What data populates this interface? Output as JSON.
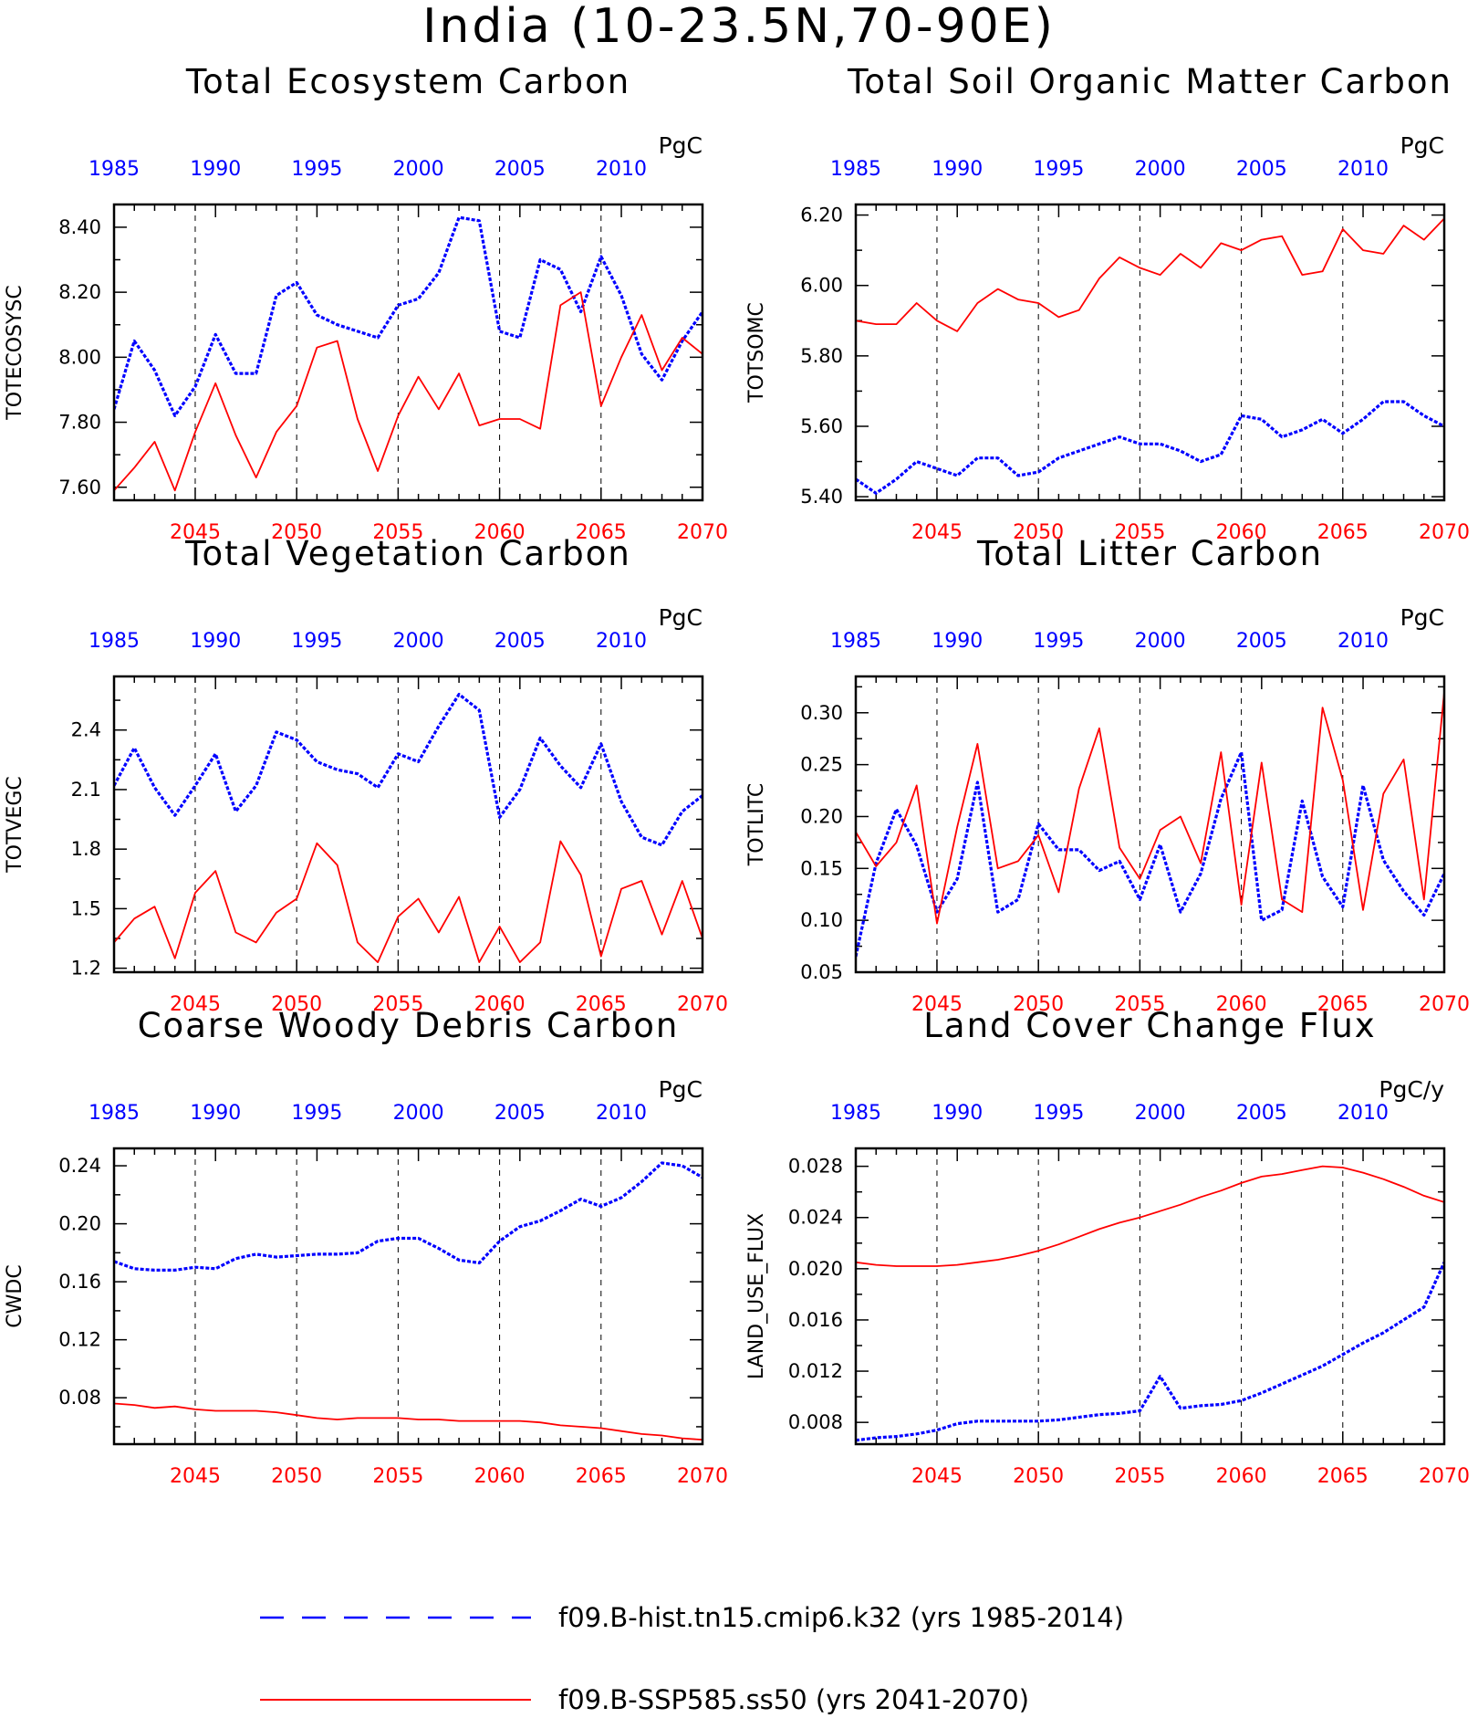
{
  "title": "India (10-23.5N,70-90E)",
  "legend": [
    {
      "label": "f09.B-hist.tn15.cmip6.k32 (yrs 1985-2014)",
      "color": "#0000ff",
      "style": "dashed"
    },
    {
      "label": "f09.B-SSP585.ss50 (yrs 2041-2070)",
      "color": "#ff0000",
      "style": "solid"
    }
  ],
  "axes_common": {
    "top_ticks": [
      "1985",
      "1990",
      "1995",
      "2000",
      "2005",
      "2010"
    ],
    "bottom_ticks": [
      "2045",
      "2050",
      "2055",
      "2060",
      "2065",
      "2070"
    ],
    "top_range": [
      1985,
      2014
    ],
    "bottom_range": [
      2041,
      2070
    ]
  },
  "chart_data": [
    {
      "type": "line",
      "title": "Total Ecosystem Carbon",
      "ylabel": "TOTECOSYSC",
      "unit": "PgC",
      "ylim": [
        7.56,
        8.47
      ],
      "yticks": [
        "7.60",
        "7.80",
        "8.00",
        "8.20",
        "8.40"
      ],
      "series": [
        {
          "name": "f09.B-hist.tn15.cmip6.k32 (yrs 1985-2014)",
          "x": [
            1985,
            1986,
            1987,
            1988,
            1989,
            1990,
            1991,
            1992,
            1993,
            1994,
            1995,
            1996,
            1997,
            1998,
            1999,
            2000,
            2001,
            2002,
            2003,
            2004,
            2005,
            2006,
            2007,
            2008,
            2009,
            2010,
            2011,
            2012,
            2013,
            2014
          ],
          "values": [
            7.84,
            8.05,
            7.96,
            7.82,
            7.91,
            8.07,
            7.95,
            7.95,
            8.19,
            8.23,
            8.13,
            8.1,
            8.08,
            8.06,
            8.16,
            8.18,
            8.26,
            8.43,
            8.42,
            8.08,
            8.06,
            8.3,
            8.27,
            8.14,
            8.31,
            8.19,
            8.01,
            7.93,
            8.05,
            8.14
          ]
        },
        {
          "name": "f09.B-SSP585.ss50 (yrs 2041-2070)",
          "x": [
            2041,
            2042,
            2043,
            2044,
            2045,
            2046,
            2047,
            2048,
            2049,
            2050,
            2051,
            2052,
            2053,
            2054,
            2055,
            2056,
            2057,
            2058,
            2059,
            2060,
            2061,
            2062,
            2063,
            2064,
            2065,
            2066,
            2067,
            2068,
            2069,
            2070
          ],
          "values": [
            7.59,
            7.66,
            7.74,
            7.59,
            7.77,
            7.92,
            7.76,
            7.63,
            7.77,
            7.85,
            8.03,
            8.05,
            7.81,
            7.65,
            7.82,
            7.94,
            7.84,
            7.95,
            7.79,
            7.81,
            7.81,
            7.78,
            8.16,
            8.2,
            7.85,
            8.0,
            8.13,
            7.96,
            8.06,
            8.01
          ]
        }
      ]
    },
    {
      "type": "line",
      "title": "Total Soil Organic Matter Carbon",
      "ylabel": "TOTSOMC",
      "unit": "PgC",
      "ylim": [
        5.39,
        6.23
      ],
      "yticks": [
        "5.40",
        "5.60",
        "5.80",
        "6.00",
        "6.20"
      ],
      "series": [
        {
          "name": "f09.B-hist.tn15.cmip6.k32 (yrs 1985-2014)",
          "x": [
            1985,
            1986,
            1987,
            1988,
            1989,
            1990,
            1991,
            1992,
            1993,
            1994,
            1995,
            1996,
            1997,
            1998,
            1999,
            2000,
            2001,
            2002,
            2003,
            2004,
            2005,
            2006,
            2007,
            2008,
            2009,
            2010,
            2011,
            2012,
            2013,
            2014
          ],
          "values": [
            5.45,
            5.41,
            5.45,
            5.5,
            5.48,
            5.46,
            5.51,
            5.51,
            5.46,
            5.47,
            5.51,
            5.53,
            5.55,
            5.57,
            5.55,
            5.55,
            5.53,
            5.5,
            5.52,
            5.63,
            5.62,
            5.57,
            5.59,
            5.62,
            5.58,
            5.62,
            5.67,
            5.67,
            5.63,
            5.6
          ]
        },
        {
          "name": "f09.B-SSP585.ss50 (yrs 2041-2070)",
          "x": [
            2041,
            2042,
            2043,
            2044,
            2045,
            2046,
            2047,
            2048,
            2049,
            2050,
            2051,
            2052,
            2053,
            2054,
            2055,
            2056,
            2057,
            2058,
            2059,
            2060,
            2061,
            2062,
            2063,
            2064,
            2065,
            2066,
            2067,
            2068,
            2069,
            2070
          ],
          "values": [
            5.9,
            5.89,
            5.89,
            5.95,
            5.9,
            5.87,
            5.95,
            5.99,
            5.96,
            5.95,
            5.91,
            5.93,
            6.02,
            6.08,
            6.05,
            6.03,
            6.09,
            6.05,
            6.12,
            6.1,
            6.13,
            6.14,
            6.03,
            6.04,
            6.16,
            6.1,
            6.09,
            6.17,
            6.13,
            6.19
          ]
        }
      ]
    },
    {
      "type": "line",
      "title": "Total Vegetation Carbon",
      "ylabel": "TOTVEGC",
      "unit": "PgC",
      "ylim": [
        1.18,
        2.67
      ],
      "yticks": [
        "1.2",
        "1.5",
        "1.8",
        "2.1",
        "2.4"
      ],
      "series": [
        {
          "name": "f09.B-hist.tn15.cmip6.k32 (yrs 1985-2014)",
          "x": [
            1985,
            1986,
            1987,
            1988,
            1989,
            1990,
            1991,
            1992,
            1993,
            1994,
            1995,
            1996,
            1997,
            1998,
            1999,
            2000,
            2001,
            2002,
            2003,
            2004,
            2005,
            2006,
            2007,
            2008,
            2009,
            2010,
            2011,
            2012,
            2013,
            2014
          ],
          "values": [
            2.12,
            2.31,
            2.11,
            1.97,
            2.12,
            2.28,
            1.99,
            2.12,
            2.39,
            2.35,
            2.24,
            2.2,
            2.18,
            2.11,
            2.28,
            2.24,
            2.42,
            2.58,
            2.5,
            1.96,
            2.1,
            2.36,
            2.22,
            2.11,
            2.33,
            2.04,
            1.86,
            1.82,
            1.99,
            2.07
          ]
        },
        {
          "name": "f09.B-SSP585.ss50 (yrs 2041-2070)",
          "x": [
            2041,
            2042,
            2043,
            2044,
            2045,
            2046,
            2047,
            2048,
            2049,
            2050,
            2051,
            2052,
            2053,
            2054,
            2055,
            2056,
            2057,
            2058,
            2059,
            2060,
            2061,
            2062,
            2063,
            2064,
            2065,
            2066,
            2067,
            2068,
            2069,
            2070
          ],
          "values": [
            1.33,
            1.45,
            1.51,
            1.25,
            1.58,
            1.69,
            1.38,
            1.33,
            1.48,
            1.55,
            1.83,
            1.72,
            1.33,
            1.23,
            1.46,
            1.55,
            1.38,
            1.56,
            1.23,
            1.41,
            1.23,
            1.33,
            1.84,
            1.67,
            1.26,
            1.6,
            1.64,
            1.37,
            1.64,
            1.35
          ]
        }
      ]
    },
    {
      "type": "line",
      "title": "Total Litter Carbon",
      "ylabel": "TOTLITC",
      "unit": "PgC",
      "ylim": [
        0.05,
        0.335
      ],
      "yticks": [
        "0.05",
        "0.10",
        "0.15",
        "0.20",
        "0.25",
        "0.30"
      ],
      "series": [
        {
          "name": "f09.B-hist.tn15.cmip6.k32 (yrs 1985-2014)",
          "x": [
            1985,
            1986,
            1987,
            1988,
            1989,
            1990,
            1991,
            1992,
            1993,
            1994,
            1995,
            1996,
            1997,
            1998,
            1999,
            2000,
            2001,
            2002,
            2003,
            2004,
            2005,
            2006,
            2007,
            2008,
            2009,
            2010,
            2011,
            2012,
            2013,
            2014
          ],
          "values": [
            0.065,
            0.155,
            0.207,
            0.172,
            0.108,
            0.14,
            0.233,
            0.108,
            0.12,
            0.193,
            0.168,
            0.168,
            0.148,
            0.157,
            0.12,
            0.173,
            0.108,
            0.145,
            0.217,
            0.262,
            0.1,
            0.11,
            0.215,
            0.142,
            0.113,
            0.23,
            0.158,
            0.128,
            0.105,
            0.145
          ]
        },
        {
          "name": "f09.B-SSP585.ss50 (yrs 2041-2070)",
          "x": [
            2041,
            2042,
            2043,
            2044,
            2045,
            2046,
            2047,
            2048,
            2049,
            2050,
            2051,
            2052,
            2053,
            2054,
            2055,
            2056,
            2057,
            2058,
            2059,
            2060,
            2061,
            2062,
            2063,
            2064,
            2065,
            2066,
            2067,
            2068,
            2069,
            2070
          ],
          "values": [
            0.185,
            0.152,
            0.175,
            0.23,
            0.097,
            0.19,
            0.27,
            0.15,
            0.157,
            0.182,
            0.127,
            0.227,
            0.285,
            0.17,
            0.14,
            0.187,
            0.2,
            0.155,
            0.262,
            0.115,
            0.252,
            0.12,
            0.108,
            0.305,
            0.235,
            0.11,
            0.222,
            0.255,
            0.12,
            0.32
          ]
        }
      ]
    },
    {
      "type": "line",
      "title": "Coarse Woody Debris Carbon",
      "ylabel": "CWDC",
      "unit": "PgC",
      "ylim": [
        0.048,
        0.252
      ],
      "yticks": [
        "0.08",
        "0.12",
        "0.16",
        "0.20",
        "0.24"
      ],
      "series": [
        {
          "name": "f09.B-hist.tn15.cmip6.k32 (yrs 1985-2014)",
          "x": [
            1985,
            1986,
            1987,
            1988,
            1989,
            1990,
            1991,
            1992,
            1993,
            1994,
            1995,
            1996,
            1997,
            1998,
            1999,
            2000,
            2001,
            2002,
            2003,
            2004,
            2005,
            2006,
            2007,
            2008,
            2009,
            2010,
            2011,
            2012,
            2013,
            2014
          ],
          "values": [
            0.174,
            0.169,
            0.168,
            0.168,
            0.17,
            0.169,
            0.176,
            0.179,
            0.177,
            0.178,
            0.179,
            0.179,
            0.18,
            0.188,
            0.19,
            0.19,
            0.183,
            0.175,
            0.173,
            0.188,
            0.198,
            0.202,
            0.209,
            0.217,
            0.212,
            0.218,
            0.229,
            0.242,
            0.24,
            0.232
          ]
        },
        {
          "name": "f09.B-SSP585.ss50 (yrs 2041-2070)",
          "x": [
            2041,
            2042,
            2043,
            2044,
            2045,
            2046,
            2047,
            2048,
            2049,
            2050,
            2051,
            2052,
            2053,
            2054,
            2055,
            2056,
            2057,
            2058,
            2059,
            2060,
            2061,
            2062,
            2063,
            2064,
            2065,
            2066,
            2067,
            2068,
            2069,
            2070
          ],
          "values": [
            0.076,
            0.075,
            0.073,
            0.074,
            0.072,
            0.071,
            0.071,
            0.071,
            0.07,
            0.068,
            0.066,
            0.065,
            0.066,
            0.066,
            0.066,
            0.065,
            0.065,
            0.064,
            0.064,
            0.064,
            0.064,
            0.063,
            0.061,
            0.06,
            0.059,
            0.057,
            0.055,
            0.054,
            0.052,
            0.051
          ]
        }
      ]
    },
    {
      "type": "line",
      "title": "Land Cover Change Flux",
      "ylabel": "LAND_USE_FLUX",
      "unit": "PgC/y",
      "ylim": [
        0.0063,
        0.0294
      ],
      "yticks": [
        "0.008",
        "0.012",
        "0.016",
        "0.020",
        "0.024",
        "0.028"
      ],
      "series": [
        {
          "name": "f09.B-hist.tn15.cmip6.k32 (yrs 1985-2014)",
          "x": [
            1985,
            1986,
            1987,
            1988,
            1989,
            1990,
            1991,
            1992,
            1993,
            1994,
            1995,
            1996,
            1997,
            1998,
            1999,
            2000,
            2001,
            2002,
            2003,
            2004,
            2005,
            2006,
            2007,
            2008,
            2009,
            2010,
            2011,
            2012,
            2013,
            2014
          ],
          "values": [
            0.0066,
            0.0068,
            0.0069,
            0.0071,
            0.0074,
            0.0079,
            0.0081,
            0.0081,
            0.0081,
            0.0081,
            0.0082,
            0.0084,
            0.0086,
            0.0087,
            0.0089,
            0.0116,
            0.0091,
            0.0093,
            0.0094,
            0.0097,
            0.0103,
            0.011,
            0.0117,
            0.0124,
            0.0133,
            0.0142,
            0.015,
            0.016,
            0.017,
            0.0205
          ]
        },
        {
          "name": "f09.B-SSP585.ss50 (yrs 2041-2070)",
          "x": [
            2041,
            2042,
            2043,
            2044,
            2045,
            2046,
            2047,
            2048,
            2049,
            2050,
            2051,
            2052,
            2053,
            2054,
            2055,
            2056,
            2057,
            2058,
            2059,
            2060,
            2061,
            2062,
            2063,
            2064,
            2065,
            2066,
            2067,
            2068,
            2069,
            2070
          ],
          "values": [
            0.0205,
            0.0203,
            0.0202,
            0.0202,
            0.0202,
            0.0203,
            0.0205,
            0.0207,
            0.021,
            0.0214,
            0.0219,
            0.0225,
            0.0231,
            0.0236,
            0.024,
            0.0245,
            0.025,
            0.0256,
            0.0261,
            0.0267,
            0.0272,
            0.0274,
            0.0277,
            0.028,
            0.0279,
            0.0275,
            0.027,
            0.0264,
            0.0257,
            0.0252
          ]
        }
      ]
    }
  ]
}
